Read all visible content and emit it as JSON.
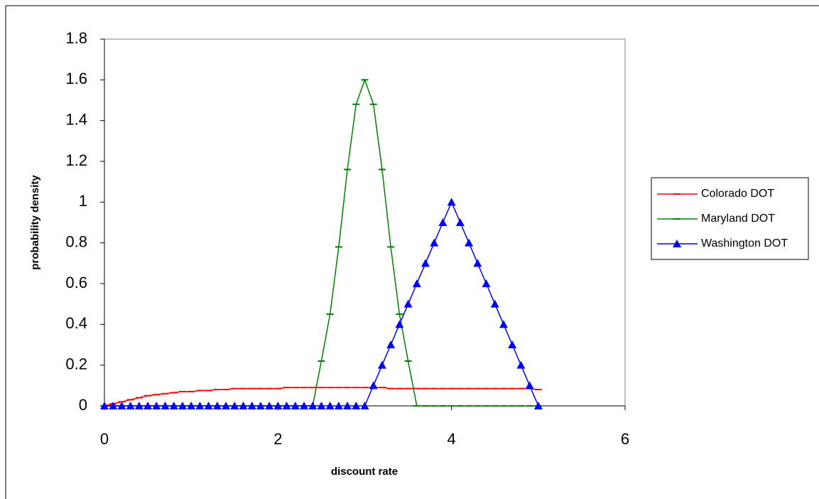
{
  "chart_data": {
    "type": "line",
    "x_label": "discount rate",
    "y_label": "probability density",
    "x": [
      0,
      0.1,
      0.2,
      0.3,
      0.4,
      0.5,
      0.6,
      0.7,
      0.8,
      0.9,
      1,
      1.1,
      1.2,
      1.3,
      1.4,
      1.5,
      1.6,
      1.7,
      1.8,
      1.9,
      2,
      2.1,
      2.2,
      2.3,
      2.4,
      2.5,
      2.6,
      2.7,
      2.8,
      2.9,
      3,
      3.1,
      3.2,
      3.3,
      3.4,
      3.5,
      3.6,
      3.7,
      3.8,
      3.9,
      4,
      4.1,
      4.2,
      4.3,
      4.4,
      4.5,
      4.6,
      4.7,
      4.8,
      4.9,
      5
    ],
    "series": [
      {
        "name": "Colorado DOT",
        "color": "#ff0000",
        "marker": "dash",
        "values": [
          0,
          0.01,
          0.02,
          0.03,
          0.04,
          0.05,
          0.055,
          0.06,
          0.065,
          0.07,
          0.07,
          0.075,
          0.075,
          0.08,
          0.08,
          0.085,
          0.085,
          0.085,
          0.085,
          0.085,
          0.085,
          0.09,
          0.09,
          0.09,
          0.09,
          0.09,
          0.09,
          0.09,
          0.09,
          0.09,
          0.09,
          0.09,
          0.09,
          0.085,
          0.085,
          0.085,
          0.085,
          0.085,
          0.085,
          0.085,
          0.085,
          0.085,
          0.085,
          0.085,
          0.085,
          0.085,
          0.085,
          0.085,
          0.085,
          0.085,
          0.08
        ]
      },
      {
        "name": "Maryland DOT",
        "color": "#008000",
        "marker": "dash",
        "values": [
          0,
          0,
          0,
          0,
          0,
          0,
          0,
          0,
          0,
          0,
          0,
          0,
          0,
          0,
          0,
          0,
          0,
          0,
          0,
          0,
          0,
          0,
          0,
          0,
          0,
          0.22,
          0.45,
          0.78,
          1.16,
          1.48,
          1.6,
          1.48,
          1.16,
          0.78,
          0.45,
          0.22,
          0,
          0,
          0,
          0,
          0,
          0,
          0,
          0,
          0,
          0,
          0,
          0,
          0,
          0,
          0
        ]
      },
      {
        "name": "Washington DOT",
        "color": "#0000ff",
        "marker": "triangle",
        "values": [
          0,
          0,
          0,
          0,
          0,
          0,
          0,
          0,
          0,
          0,
          0,
          0,
          0,
          0,
          0,
          0,
          0,
          0,
          0,
          0,
          0,
          0,
          0,
          0,
          0,
          0,
          0,
          0,
          0,
          0,
          0,
          0.1,
          0.2,
          0.3,
          0.4,
          0.5,
          0.6,
          0.7,
          0.8,
          0.9,
          1,
          0.9,
          0.8,
          0.7,
          0.6,
          0.5,
          0.4,
          0.3,
          0.2,
          0.1,
          0
        ]
      }
    ],
    "xlim": [
      0,
      6
    ],
    "xticks": [
      0,
      2,
      4,
      6
    ],
    "ylim": [
      0,
      1.8
    ],
    "yticks": [
      0,
      0.2,
      0.4,
      0.6,
      0.8,
      1,
      1.2,
      1.4,
      1.6,
      1.8
    ],
    "legend": "right"
  }
}
